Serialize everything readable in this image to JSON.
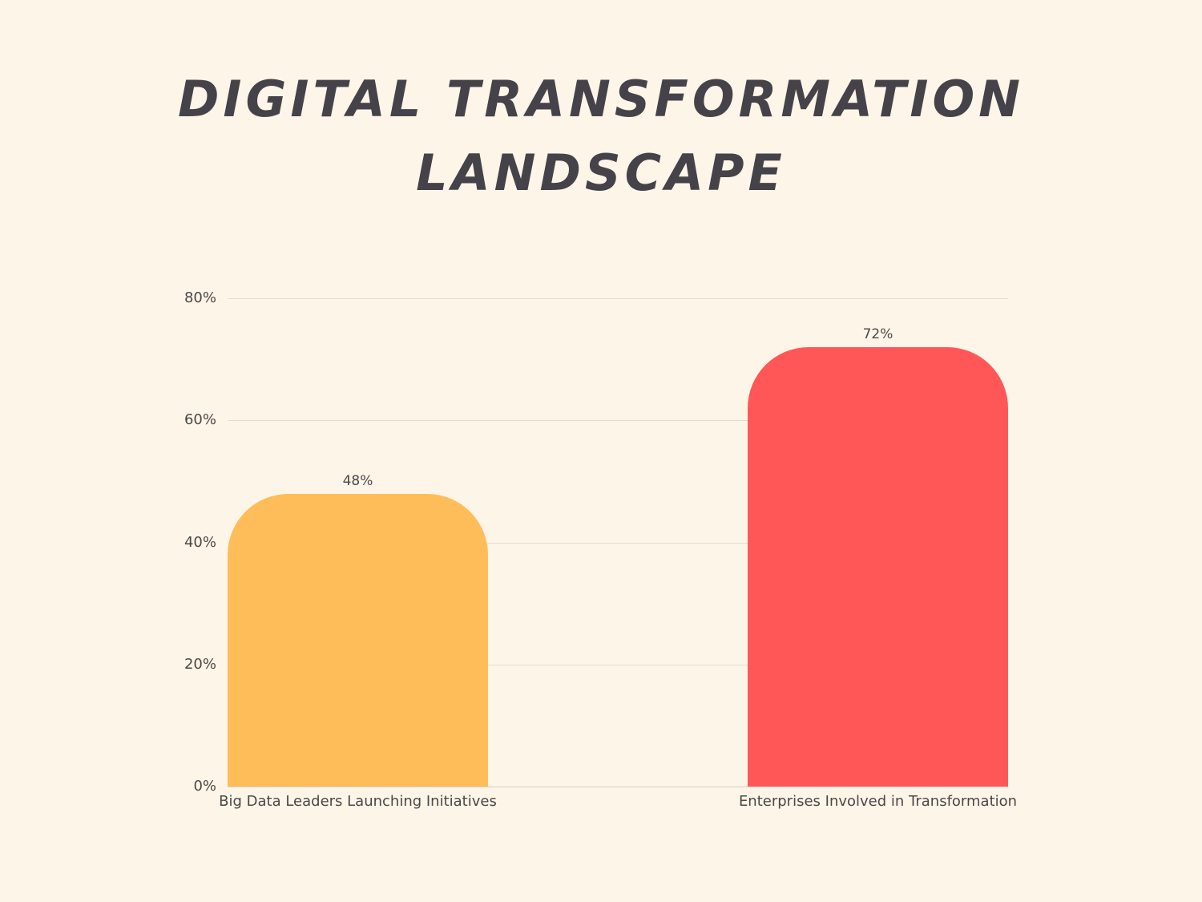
{
  "title": {
    "line1": "DIGITAL TRANSFORMATION",
    "line2": "LANDSCAPE"
  },
  "colors": {
    "background": "#fdf6e8",
    "title": "#45424a",
    "bar_1": "#ffbd59",
    "bar_2": "#ff5757",
    "gridline": "#e4ddd0",
    "text": "#4a4748"
  },
  "axis": {
    "y_ticks": [
      "0%",
      "20%",
      "40%",
      "60%",
      "80%"
    ]
  },
  "bars": [
    {
      "label": "Big Data Leaders Launching Initiatives",
      "value_label": "48%"
    },
    {
      "label": "Enterprises Involved in Transformation",
      "value_label": "72%"
    }
  ],
  "chart_data": {
    "type": "bar",
    "title": "DIGITAL TRANSFORMATION LANDSCAPE",
    "categories": [
      "Big Data Leaders Launching Initiatives",
      "Enterprises Involved in Transformation"
    ],
    "values": [
      48,
      72
    ],
    "value_labels": [
      "48%",
      "72%"
    ],
    "colors": [
      "#ffbd59",
      "#ff5757"
    ],
    "xlabel": "",
    "ylabel": "",
    "ylim": [
      0,
      80
    ],
    "y_ticks": [
      0,
      20,
      40,
      60,
      80
    ],
    "y_tick_format": "percent",
    "grid": true,
    "legend": "none",
    "data_labels": true
  }
}
